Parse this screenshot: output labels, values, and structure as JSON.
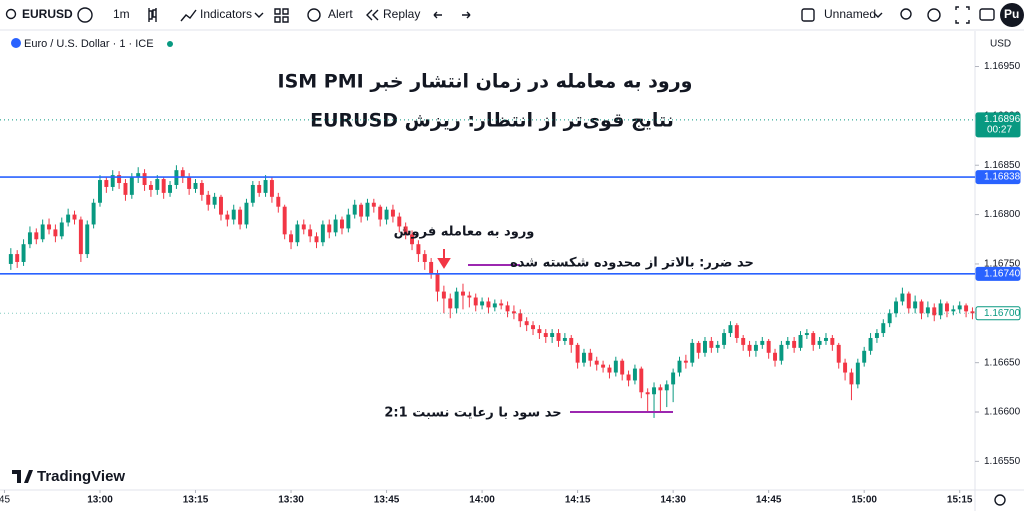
{
  "toolbar": {
    "symbol": "EURUSD",
    "interval": "1m",
    "indicators": "Indicators",
    "alert": "Alert",
    "replay": "Replay",
    "layout": "Unnamed",
    "user": "Pu"
  },
  "chart_data": {
    "type": "candlestick",
    "legend": "Euro / U.S. Dollar · 1 · ICE",
    "currency": "USD",
    "brand": "TradingView",
    "title": "ورود به معامله در زمان انتشار خبر ISM PMI",
    "subtitle": "نتایج قوی‌تر از انتظار: ریزش EURUSD",
    "annotations": {
      "entry": "ورود به معامله فروش",
      "stop_loss": "حد ضرر: بالاتر از محدوده شکسته شده",
      "take_profit": "حد سود با رعایت نسبت 2:1"
    },
    "up_color": "#089981",
    "down_color": "#f23645",
    "xlim": [
      -1.7,
      151.4
    ],
    "xticks": [
      {
        "value": -1,
        "label": "45"
      },
      {
        "value": 14,
        "label": "13:00"
      },
      {
        "value": 29,
        "label": "13:15"
      },
      {
        "value": 44,
        "label": "13:30"
      },
      {
        "value": 59,
        "label": "13:45"
      },
      {
        "value": 74,
        "label": "14:00"
      },
      {
        "value": 89,
        "label": "14:15"
      },
      {
        "value": 104,
        "label": "14:30"
      },
      {
        "value": 119,
        "label": "14:45"
      },
      {
        "value": 134,
        "label": "15:00"
      },
      {
        "value": 149,
        "label": "15:15"
      }
    ],
    "ylim": [
      1.16521,
      1.16987
    ],
    "yticks": [
      {
        "value": 1.1695,
        "label": "1.16950"
      },
      {
        "value": 1.169,
        "label": "1.16900"
      },
      {
        "value": 1.1685,
        "label": "1.16850"
      },
      {
        "value": 1.168,
        "label": "1.16800"
      },
      {
        "value": 1.1675,
        "label": "1.16750"
      },
      {
        "value": 1.167,
        "label": "1.16700"
      },
      {
        "value": 1.1665,
        "label": "1.16650"
      },
      {
        "value": 1.166,
        "label": "1.16600"
      },
      {
        "value": 1.1655,
        "label": "1.16550"
      }
    ],
    "price_lines": [
      {
        "value": 1.16896,
        "color": "#089981",
        "style": "dotted",
        "countdown": "00:27"
      },
      {
        "value": 1.16838,
        "color": "#2962ff",
        "style": "solid"
      },
      {
        "value": 1.1674,
        "label": "1.16740",
        "color": "#2962ff",
        "style": "solid"
      },
      {
        "value": 1.167,
        "label": "1.16700",
        "color": "#089981",
        "style": "last"
      }
    ],
    "candles": [
      [
        1.1675,
        1.16766,
        1.16744,
        1.1676
      ],
      [
        1.1676,
        1.16764,
        1.16746,
        1.16752
      ],
      [
        1.16752,
        1.16775,
        1.16748,
        1.1677
      ],
      [
        1.1677,
        1.16788,
        1.16766,
        1.16782
      ],
      [
        1.16782,
        1.16786,
        1.1677,
        1.16775
      ],
      [
        1.16775,
        1.16795,
        1.16772,
        1.1679
      ],
      [
        1.1679,
        1.16796,
        1.1678,
        1.16785
      ],
      [
        1.16785,
        1.1679,
        1.16772,
        1.16778
      ],
      [
        1.16778,
        1.16797,
        1.16775,
        1.16792
      ],
      [
        1.16792,
        1.16806,
        1.16788,
        1.168
      ],
      [
        1.168,
        1.16804,
        1.1679,
        1.16795
      ],
      [
        1.16795,
        1.16798,
        1.16752,
        1.1676
      ],
      [
        1.1676,
        1.16794,
        1.16756,
        1.1679
      ],
      [
        1.1679,
        1.16816,
        1.16786,
        1.16812
      ],
      [
        1.16812,
        1.1684,
        1.16808,
        1.16835
      ],
      [
        1.16835,
        1.16838,
        1.16822,
        1.16828
      ],
      [
        1.16828,
        1.16845,
        1.16824,
        1.1684
      ],
      [
        1.1684,
        1.16844,
        1.16826,
        1.16832
      ],
      [
        1.16832,
        1.16836,
        1.16814,
        1.1682
      ],
      [
        1.1682,
        1.16842,
        1.16816,
        1.16838
      ],
      [
        1.16838,
        1.16848,
        1.16832,
        1.16842
      ],
      [
        1.16842,
        1.16846,
        1.16824,
        1.1683
      ],
      [
        1.1683,
        1.16834,
        1.16818,
        1.16825
      ],
      [
        1.16825,
        1.1684,
        1.1682,
        1.16836
      ],
      [
        1.16836,
        1.16838,
        1.16816,
        1.16822
      ],
      [
        1.16822,
        1.16834,
        1.16818,
        1.1683
      ],
      [
        1.1683,
        1.1685,
        1.16826,
        1.16845
      ],
      [
        1.16845,
        1.16848,
        1.16832,
        1.16838
      ],
      [
        1.16838,
        1.16842,
        1.1682,
        1.16826
      ],
      [
        1.16826,
        1.16836,
        1.16822,
        1.16832
      ],
      [
        1.16832,
        1.16835,
        1.16814,
        1.1682
      ],
      [
        1.1682,
        1.16824,
        1.16804,
        1.1681
      ],
      [
        1.1681,
        1.16822,
        1.16806,
        1.16818
      ],
      [
        1.16818,
        1.1682,
        1.16794,
        1.168
      ],
      [
        1.168,
        1.16804,
        1.16788,
        1.16795
      ],
      [
        1.16795,
        1.1681,
        1.1679,
        1.16805
      ],
      [
        1.16805,
        1.16808,
        1.16785,
        1.1679
      ],
      [
        1.1679,
        1.16816,
        1.16786,
        1.16812
      ],
      [
        1.16812,
        1.16834,
        1.16808,
        1.1683
      ],
      [
        1.1683,
        1.16834,
        1.16818,
        1.16822
      ],
      [
        1.16822,
        1.1684,
        1.16818,
        1.16835
      ],
      [
        1.16835,
        1.16838,
        1.16812,
        1.16818
      ],
      [
        1.16818,
        1.16822,
        1.16802,
        1.16808
      ],
      [
        1.16808,
        1.1681,
        1.16775,
        1.1678
      ],
      [
        1.1678,
        1.16784,
        1.16765,
        1.16772
      ],
      [
        1.16772,
        1.16794,
        1.16768,
        1.1679
      ],
      [
        1.1679,
        1.16795,
        1.1678,
        1.16785
      ],
      [
        1.16785,
        1.1679,
        1.16772,
        1.16778
      ],
      [
        1.16778,
        1.16782,
        1.16766,
        1.16772
      ],
      [
        1.16772,
        1.16794,
        1.16768,
        1.1679
      ],
      [
        1.1679,
        1.16795,
        1.16776,
        1.16782
      ],
      [
        1.16782,
        1.168,
        1.16778,
        1.16795
      ],
      [
        1.16795,
        1.16798,
        1.1678,
        1.16786
      ],
      [
        1.16786,
        1.16806,
        1.16782,
        1.168
      ],
      [
        1.168,
        1.16815,
        1.16796,
        1.1681
      ],
      [
        1.1681,
        1.16812,
        1.16792,
        1.16798
      ],
      [
        1.16798,
        1.16816,
        1.16794,
        1.16812
      ],
      [
        1.16812,
        1.16816,
        1.16802,
        1.16808
      ],
      [
        1.16808,
        1.1681,
        1.16788,
        1.16795
      ],
      [
        1.16795,
        1.16808,
        1.1679,
        1.16805
      ],
      [
        1.16805,
        1.1681,
        1.16792,
        1.16798
      ],
      [
        1.16798,
        1.16802,
        1.16782,
        1.16788
      ],
      [
        1.16788,
        1.16792,
        1.16775,
        1.1678
      ],
      [
        1.1678,
        1.16784,
        1.16764,
        1.1677
      ],
      [
        1.1677,
        1.16774,
        1.16752,
        1.1676
      ],
      [
        1.1676,
        1.16764,
        1.16744,
        1.16752
      ],
      [
        1.16752,
        1.16756,
        1.16735,
        1.1674
      ],
      [
        1.1674,
        1.16744,
        1.16712,
        1.16722
      ],
      [
        1.16722,
        1.16728,
        1.167,
        1.16715
      ],
      [
        1.16715,
        1.1672,
        1.16695,
        1.16705
      ],
      [
        1.16705,
        1.16726,
        1.167,
        1.16722
      ],
      [
        1.16722,
        1.1673,
        1.16704,
        1.16718
      ],
      [
        1.16718,
        1.16722,
        1.16706,
        1.16716
      ],
      [
        1.16716,
        1.1672,
        1.16702,
        1.16708
      ],
      [
        1.16708,
        1.16716,
        1.16704,
        1.16712
      ],
      [
        1.16712,
        1.16716,
        1.167,
        1.16706
      ],
      [
        1.16706,
        1.16714,
        1.16702,
        1.1671
      ],
      [
        1.1671,
        1.16714,
        1.16704,
        1.16708
      ],
      [
        1.16708,
        1.16712,
        1.16696,
        1.16702
      ],
      [
        1.16702,
        1.16708,
        1.16694,
        1.167
      ],
      [
        1.167,
        1.16704,
        1.16686,
        1.16692
      ],
      [
        1.16692,
        1.16696,
        1.16682,
        1.16688
      ],
      [
        1.16688,
        1.16692,
        1.16678,
        1.16684
      ],
      [
        1.16684,
        1.16688,
        1.16674,
        1.1668
      ],
      [
        1.1668,
        1.16684,
        1.1667,
        1.16676
      ],
      [
        1.16676,
        1.16684,
        1.1667,
        1.1668
      ],
      [
        1.1668,
        1.16684,
        1.16666,
        1.16672
      ],
      [
        1.16672,
        1.1668,
        1.16668,
        1.16675
      ],
      [
        1.16675,
        1.16678,
        1.1666,
        1.16668
      ],
      [
        1.16668,
        1.1667,
        1.16644,
        1.1665
      ],
      [
        1.1665,
        1.16664,
        1.16646,
        1.1666
      ],
      [
        1.1666,
        1.16664,
        1.16646,
        1.16652
      ],
      [
        1.16652,
        1.16656,
        1.16642,
        1.16648
      ],
      [
        1.16648,
        1.16652,
        1.1664,
        1.16645
      ],
      [
        1.16645,
        1.16648,
        1.16634,
        1.1664
      ],
      [
        1.1664,
        1.16656,
        1.16636,
        1.16652
      ],
      [
        1.16652,
        1.16654,
        1.16632,
        1.16638
      ],
      [
        1.16638,
        1.16642,
        1.16626,
        1.16632
      ],
      [
        1.16632,
        1.16648,
        1.16628,
        1.16644
      ],
      [
        1.16644,
        1.16646,
        1.16614,
        1.1662
      ],
      [
        1.1662,
        1.16624,
        1.166,
        1.16618
      ],
      [
        1.16618,
        1.1663,
        1.16594,
        1.16625
      ],
      [
        1.16625,
        1.16628,
        1.166,
        1.16622
      ],
      [
        1.16622,
        1.16632,
        1.16605,
        1.16628
      ],
      [
        1.16628,
        1.16644,
        1.1661,
        1.1664
      ],
      [
        1.1664,
        1.16656,
        1.16636,
        1.16652
      ],
      [
        1.16652,
        1.16658,
        1.16644,
        1.1665
      ],
      [
        1.1665,
        1.16674,
        1.16646,
        1.1667
      ],
      [
        1.1667,
        1.16672,
        1.16654,
        1.1666
      ],
      [
        1.1666,
        1.16676,
        1.16656,
        1.16672
      ],
      [
        1.16672,
        1.16676,
        1.1666,
        1.16665
      ],
      [
        1.16665,
        1.16672,
        1.1666,
        1.16668
      ],
      [
        1.16668,
        1.16684,
        1.16664,
        1.1668
      ],
      [
        1.1668,
        1.16692,
        1.16676,
        1.16688
      ],
      [
        1.16688,
        1.1669,
        1.1667,
        1.16675
      ],
      [
        1.16675,
        1.16678,
        1.16662,
        1.16668
      ],
      [
        1.16668,
        1.16672,
        1.16656,
        1.16662
      ],
      [
        1.16662,
        1.16672,
        1.16656,
        1.16668
      ],
      [
        1.16668,
        1.16676,
        1.16664,
        1.16672
      ],
      [
        1.16672,
        1.16674,
        1.16654,
        1.1666
      ],
      [
        1.1666,
        1.16664,
        1.16646,
        1.16652
      ],
      [
        1.16652,
        1.16672,
        1.16648,
        1.16668
      ],
      [
        1.16668,
        1.16676,
        1.16664,
        1.16672
      ],
      [
        1.16672,
        1.16676,
        1.1666,
        1.16665
      ],
      [
        1.16665,
        1.16682,
        1.16662,
        1.16678
      ],
      [
        1.16678,
        1.16684,
        1.16674,
        1.1668
      ],
      [
        1.1668,
        1.16682,
        1.16662,
        1.16668
      ],
      [
        1.16668,
        1.16676,
        1.16664,
        1.16672
      ],
      [
        1.16672,
        1.1668,
        1.16668,
        1.16675
      ],
      [
        1.16675,
        1.16678,
        1.16662,
        1.16668
      ],
      [
        1.16668,
        1.1667,
        1.16644,
        1.1665
      ],
      [
        1.1665,
        1.16654,
        1.16632,
        1.1664
      ],
      [
        1.1664,
        1.16644,
        1.16612,
        1.16628
      ],
      [
        1.16628,
        1.16654,
        1.16624,
        1.1665
      ],
      [
        1.1665,
        1.16666,
        1.16646,
        1.16662
      ],
      [
        1.16662,
        1.1668,
        1.16658,
        1.16675
      ],
      [
        1.16675,
        1.16684,
        1.1667,
        1.1668
      ],
      [
        1.1668,
        1.16694,
        1.16676,
        1.1669
      ],
      [
        1.1669,
        1.16704,
        1.16686,
        1.167
      ],
      [
        1.167,
        1.16716,
        1.16696,
        1.16712
      ],
      [
        1.16712,
        1.16726,
        1.16708,
        1.1672
      ],
      [
        1.1672,
        1.16722,
        1.167,
        1.16705
      ],
      [
        1.16705,
        1.16718,
        1.167,
        1.16712
      ],
      [
        1.16712,
        1.16714,
        1.16694,
        1.167
      ],
      [
        1.167,
        1.16712,
        1.16696,
        1.16706
      ],
      [
        1.16706,
        1.1671,
        1.16692,
        1.16698
      ],
      [
        1.16698,
        1.16714,
        1.16694,
        1.1671
      ],
      [
        1.1671,
        1.16712,
        1.16696,
        1.16702
      ],
      [
        1.16702,
        1.16708,
        1.16698,
        1.16704
      ],
      [
        1.16704,
        1.16712,
        1.167,
        1.16708
      ],
      [
        1.16708,
        1.1671,
        1.16696,
        1.16702
      ],
      [
        1.16702,
        1.16706,
        1.16694,
        1.167
      ]
    ]
  }
}
